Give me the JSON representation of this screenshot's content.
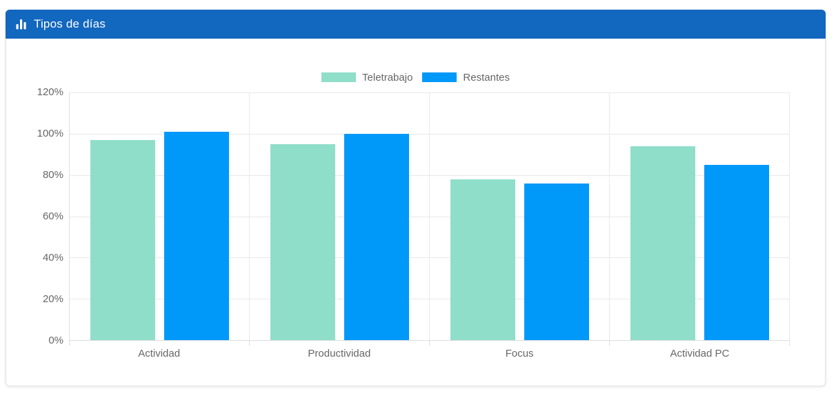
{
  "header": {
    "title": "Tipos de días",
    "icon": "bar-chart-icon"
  },
  "colors": {
    "header_bg": "#1267BF",
    "teletrabajo": "#8FDEC9",
    "restantes": "#0099FA",
    "grid": "#E8E8E8",
    "axis_text": "#666666"
  },
  "chart_data": {
    "type": "bar",
    "title": "Tipos de días",
    "categories": [
      "Actividad",
      "Productividad",
      "Focus",
      "Actividad PC"
    ],
    "series": [
      {
        "name": "Teletrabajo",
        "color": "#8FDEC9",
        "values": [
          97,
          95,
          78,
          94
        ]
      },
      {
        "name": "Restantes",
        "color": "#0099FA",
        "values": [
          101,
          100,
          76,
          85
        ]
      }
    ],
    "ylim": [
      0,
      120
    ],
    "ytick_step": 20,
    "yticks": [
      "0%",
      "20%",
      "40%",
      "60%",
      "80%",
      "100%",
      "120%"
    ],
    "legend_position": "top",
    "grid": true,
    "xlabel": "",
    "ylabel": ""
  }
}
